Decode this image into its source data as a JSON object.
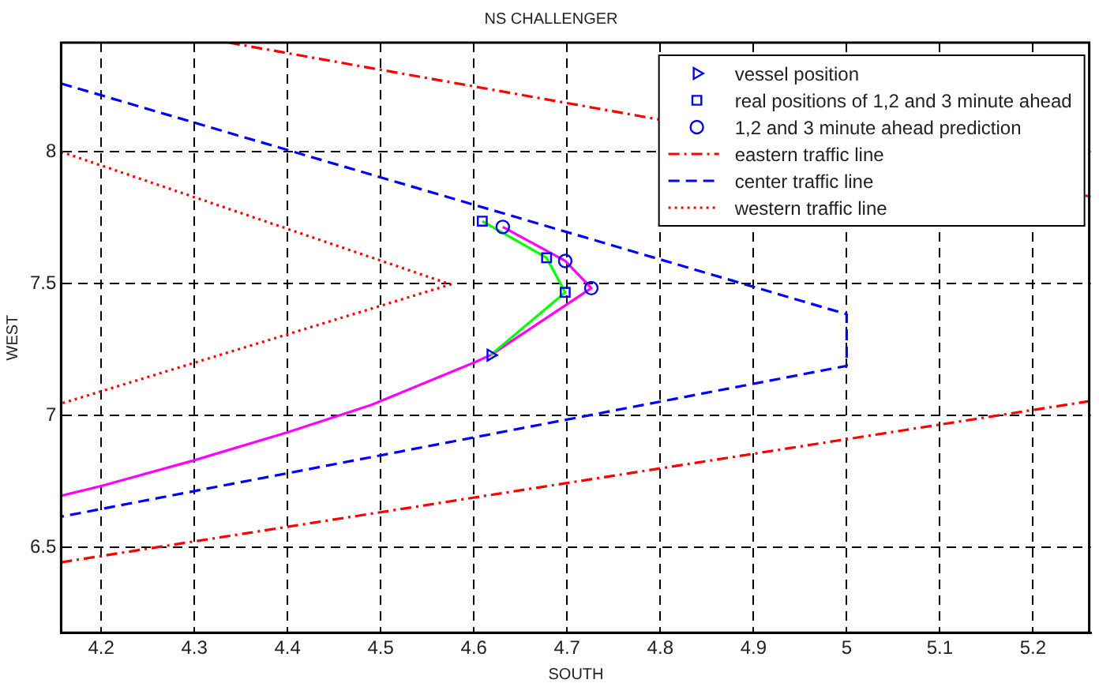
{
  "chart_data": {
    "type": "line",
    "title": "NS CHALLENGER",
    "xlabel": "SOUTH",
    "ylabel": "WEST",
    "xlim": [
      4.157,
      5.262
    ],
    "ylim": [
      6.176,
      8.414
    ],
    "xticks": [
      4.2,
      4.3,
      4.4,
      4.5,
      4.6,
      4.7,
      4.8,
      4.9,
      5,
      5.1,
      5.2
    ],
    "yticks": [
      6.5,
      7,
      7.5,
      8
    ],
    "grid": true,
    "legend": "top right",
    "series": [
      {
        "color": "#00ff00",
        "marker": "none",
        "line_style": "solid",
        "x": [
          4.618,
          4.698,
          4.678,
          4.609
        ],
        "values": [
          7.229,
          7.467,
          7.598,
          7.737
        ]
      },
      {
        "color": "#ff00ff",
        "marker": "none",
        "line_style": "solid",
        "x": [
          4.157,
          4.2,
          4.3,
          4.4,
          4.49,
          4.6,
          4.618,
          4.726,
          4.698,
          4.631
        ],
        "values": [
          6.695,
          6.732,
          6.83,
          6.936,
          7.04,
          7.2,
          7.229,
          7.483,
          7.586,
          7.715
        ]
      },
      {
        "type": "scatter",
        "name": "vessel position",
        "color": "#0000ff",
        "marker": "triangle",
        "x": [
          4.618
        ],
        "values": [
          7.229
        ]
      },
      {
        "type": "scatter",
        "name": "real positions of 1,2 and 3 minute ahead",
        "color": "#0000ff",
        "marker": "square",
        "x": [
          4.609,
          4.678,
          4.698
        ],
        "values": [
          7.737,
          7.598,
          7.467
        ]
      },
      {
        "type": "scatter",
        "name": "1,2 and 3 minute ahead prediction",
        "color": "#0000ff",
        "marker": "circle",
        "x": [
          4.631,
          4.698,
          4.726
        ],
        "values": [
          7.715,
          7.586,
          7.483
        ]
      },
      {
        "name": "eastern traffic line",
        "color": "#ff0000",
        "marker": "none",
        "line_style": "dashdot",
        "x": [
          4.157,
          5.262
        ],
        "values": [
          6.443,
          7.055
        ]
      },
      {
        "color": "#ff0000",
        "marker": "none",
        "line_style": "dashdot",
        "x": [
          4.337,
          5.262
        ],
        "values": [
          8.414,
          7.83
        ]
      },
      {
        "name": "center traffic line",
        "color": "#0000ff",
        "marker": "none",
        "line_style": "dashed",
        "x": [
          4.157,
          5,
          5,
          4.157
        ],
        "values": [
          8.259,
          7.384,
          7.188,
          6.616
        ]
      },
      {
        "name": "western traffic line",
        "color": "#ff0000",
        "marker": "none",
        "line_style": "dotted",
        "x": [
          4.157,
          4.575,
          4.157
        ],
        "values": [
          8.0,
          7.497,
          7.045
        ]
      }
    ]
  }
}
